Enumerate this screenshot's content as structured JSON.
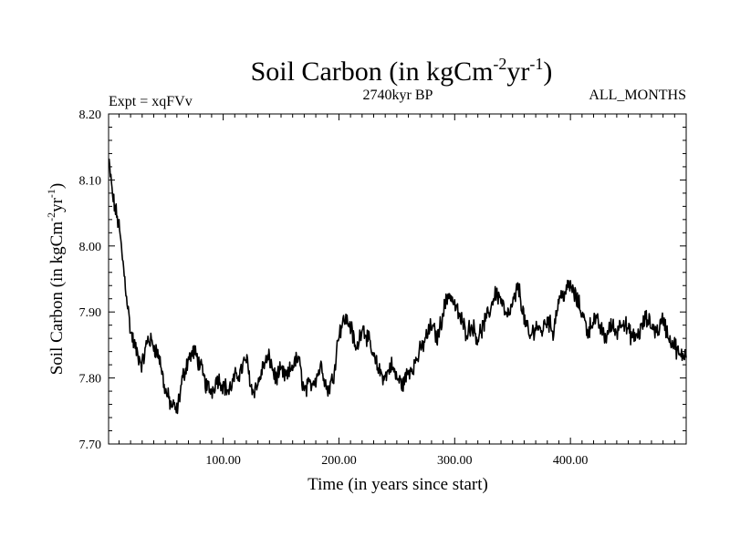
{
  "chart_data": {
    "type": "line",
    "title_main": "Soil Carbon (in kgCm",
    "title_sup1": "-2",
    "title_mid": "yr",
    "title_sup2": "-1",
    "title_end": ")",
    "expt_label": "Expt = xqFVv",
    "period_label": "2740kyr BP",
    "months_label": "ALL_MONTHS",
    "xlabel": "Time (in years since start)",
    "ylabel_main": "Soil Carbon (in kgCm",
    "ylabel_sup1": "-2",
    "ylabel_mid": "yr",
    "ylabel_sup2": "-1",
    "ylabel_end": ")",
    "xlim": [
      1,
      500
    ],
    "ylim": [
      7.7,
      8.2
    ],
    "xticks": [
      100,
      200,
      300,
      400
    ],
    "xtick_labels": [
      "100.00",
      "200.00",
      "300.00",
      "400.00"
    ],
    "yticks": [
      7.7,
      7.8,
      7.9,
      8.0,
      8.1,
      8.2
    ],
    "ytick_labels": [
      "7.70",
      "7.80",
      "7.90",
      "8.00",
      "8.10",
      "8.20"
    ],
    "line_color": "#000000",
    "series": [
      {
        "name": "Soil Carbon",
        "x": [
          1,
          5,
          10,
          15,
          20,
          25,
          30,
          35,
          40,
          45,
          50,
          55,
          60,
          65,
          70,
          75,
          80,
          85,
          90,
          95,
          100,
          105,
          110,
          115,
          120,
          125,
          130,
          135,
          140,
          145,
          150,
          155,
          160,
          165,
          170,
          175,
          180,
          185,
          190,
          195,
          200,
          205,
          210,
          215,
          220,
          225,
          230,
          235,
          240,
          245,
          250,
          255,
          260,
          265,
          270,
          275,
          280,
          285,
          290,
          295,
          300,
          305,
          310,
          315,
          320,
          325,
          330,
          335,
          340,
          345,
          350,
          355,
          360,
          365,
          370,
          375,
          380,
          385,
          390,
          395,
          400,
          405,
          410,
          415,
          420,
          425,
          430,
          435,
          440,
          445,
          450,
          455,
          460,
          465,
          470,
          475,
          480,
          485,
          490,
          495,
          500
        ],
        "values": [
          8.13,
          8.07,
          8.03,
          7.95,
          7.87,
          7.84,
          7.82,
          7.86,
          7.85,
          7.83,
          7.78,
          7.76,
          7.75,
          7.8,
          7.83,
          7.84,
          7.82,
          7.79,
          7.78,
          7.8,
          7.79,
          7.78,
          7.8,
          7.81,
          7.83,
          7.78,
          7.79,
          7.82,
          7.83,
          7.8,
          7.81,
          7.8,
          7.82,
          7.83,
          7.78,
          7.79,
          7.8,
          7.82,
          7.78,
          7.8,
          7.87,
          7.89,
          7.88,
          7.84,
          7.88,
          7.86,
          7.83,
          7.81,
          7.8,
          7.82,
          7.8,
          7.79,
          7.81,
          7.82,
          7.84,
          7.86,
          7.88,
          7.86,
          7.9,
          7.93,
          7.91,
          7.89,
          7.87,
          7.88,
          7.86,
          7.88,
          7.9,
          7.93,
          7.92,
          7.89,
          7.91,
          7.94,
          7.89,
          7.86,
          7.88,
          7.87,
          7.89,
          7.87,
          7.92,
          7.93,
          7.94,
          7.92,
          7.9,
          7.87,
          7.89,
          7.88,
          7.86,
          7.88,
          7.87,
          7.89,
          7.87,
          7.86,
          7.87,
          7.89,
          7.88,
          7.87,
          7.89,
          7.86,
          7.85,
          7.83,
          7.84
        ]
      }
    ]
  }
}
